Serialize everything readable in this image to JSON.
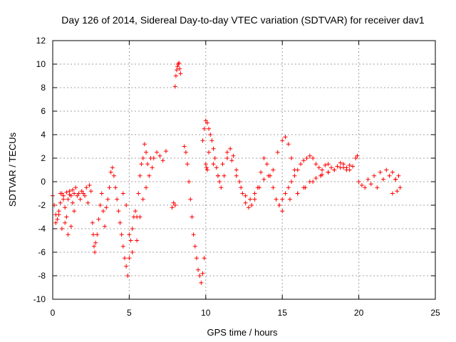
{
  "chart_data": {
    "type": "scatter",
    "title": "Day 126 of 2014, Sidereal Day-to-day VTEC variation (SDTVAR) for receiver dav1",
    "xlabel": "GPS time / hours",
    "ylabel": "SDTVAR / TECUs",
    "xlim": [
      0,
      25
    ],
    "ylim": [
      -10,
      12
    ],
    "xticks": [
      0,
      5,
      10,
      15,
      20,
      25
    ],
    "yticks": [
      -10,
      -8,
      -6,
      -4,
      -2,
      0,
      2,
      4,
      6,
      8,
      10,
      12
    ],
    "grid": true,
    "marker": "+",
    "color": "#ff0000",
    "series": [
      {
        "name": "SDTVAR",
        "x": [
          0.0,
          0.1,
          0.2,
          0.3,
          0.4,
          0.5,
          0.6,
          0.7,
          0.8,
          0.9,
          1.0,
          1.1,
          1.2,
          1.3,
          1.4,
          1.5,
          1.6,
          1.7,
          1.8,
          1.9,
          2.0,
          2.1,
          2.2,
          2.3,
          2.4,
          2.5,
          0.2,
          0.4,
          0.6,
          0.8,
          1.0,
          1.2,
          1.4,
          0.5,
          0.7,
          0.9,
          1.1,
          1.3,
          2.6,
          2.65,
          2.7,
          2.75,
          2.8,
          2.9,
          3.0,
          3.1,
          3.2,
          3.3,
          3.4,
          3.5,
          3.6,
          3.7,
          3.8,
          3.9,
          4.0,
          4.1,
          4.2,
          4.3,
          4.4,
          4.5,
          4.6,
          4.7,
          4.8,
          4.9,
          5.0,
          5.1,
          5.2,
          5.3,
          5.4,
          4.6,
          4.8,
          5.0,
          5.2,
          5.5,
          5.6,
          5.7,
          5.8,
          5.9,
          6.0,
          6.1,
          6.2,
          6.3,
          6.4,
          6.5,
          6.6,
          6.8,
          7.0,
          7.2,
          7.4,
          5.5,
          5.7,
          5.9,
          6.1,
          8.0,
          8.05,
          8.1,
          8.15,
          8.2,
          8.25,
          8.3,
          8.35,
          7.8,
          7.9,
          8.0,
          8.6,
          8.7,
          8.8,
          8.9,
          9.0,
          9.1,
          9.2,
          9.3,
          9.4,
          9.5,
          9.6,
          9.7,
          9.8,
          9.9,
          10.0,
          10.05,
          10.1,
          9.8,
          9.9,
          10.0,
          10.1,
          10.2,
          10.3,
          10.4,
          10.5,
          10.6,
          10.7,
          10.8,
          10.9,
          11.0,
          11.2,
          11.4,
          11.6,
          11.8,
          12.0,
          12.2,
          12.4,
          12.6,
          12.8,
          13.0,
          13.2,
          13.4,
          13.6,
          13.8,
          14.0,
          14.2,
          14.4,
          14.6,
          14.8,
          10.2,
          10.5,
          10.8,
          11.1,
          11.4,
          11.7,
          12.0,
          12.3,
          12.6,
          12.9,
          13.2,
          13.5,
          13.8,
          14.1,
          14.4,
          14.7,
          15.0,
          15.2,
          15.4,
          15.6,
          15.8,
          14.8,
          15.0,
          15.2,
          15.4,
          15.6,
          15.8,
          16.0,
          16.2,
          16.4,
          16.6,
          16.8,
          17.0,
          17.2,
          17.4,
          17.6,
          17.8,
          18.0,
          18.2,
          18.4,
          18.6,
          18.8,
          19.0,
          19.2,
          19.4,
          15.0,
          15.5,
          16.0,
          16.5,
          17.0,
          17.5,
          18.0,
          16.0,
          16.4,
          16.8,
          17.2,
          17.6,
          18.0,
          18.4,
          18.8,
          19.0,
          19.2,
          19.4,
          19.6,
          19.8,
          19.9,
          20.0,
          20.2,
          20.4,
          20.6,
          20.8,
          21.0,
          21.2,
          21.4,
          21.6,
          21.8,
          22.0,
          22.2,
          22.4,
          22.6,
          22.7,
          22.2,
          22.4,
          22.5
        ],
        "y": [
          -1.2,
          -2.0,
          -2.8,
          -3.2,
          -2.5,
          -1.8,
          -1.0,
          -1.5,
          -2.2,
          -3.0,
          -1.5,
          -0.8,
          -1.2,
          -1.8,
          -1.0,
          -0.5,
          -1.2,
          -1.0,
          -1.5,
          -0.8,
          -1.0,
          -1.2,
          -0.5,
          -1.8,
          -0.3,
          -0.8,
          -3.5,
          -2.8,
          -4.0,
          -3.5,
          -4.5,
          -3.8,
          -2.5,
          -1.0,
          -1.2,
          -0.9,
          -1.1,
          -0.7,
          -3.5,
          -4.5,
          -5.5,
          -6.0,
          -5.2,
          -4.5,
          -3.2,
          -2.0,
          -1.0,
          -2.5,
          -3.8,
          -2.2,
          -1.5,
          -0.5,
          0.8,
          1.2,
          0.5,
          -0.5,
          -1.5,
          -2.5,
          -3.5,
          -4.5,
          -5.5,
          -6.5,
          -7.2,
          -8.0,
          -6.5,
          -5.0,
          -4.0,
          -3.0,
          -2.5,
          -1.0,
          -2.0,
          -4.5,
          -6.0,
          -3.0,
          -1.0,
          0.5,
          1.5,
          2.0,
          3.2,
          2.5,
          1.5,
          0.5,
          2.0,
          1.2,
          2.0,
          2.5,
          2.2,
          1.8,
          2.6,
          -5.0,
          -3.0,
          -1.5,
          -0.5,
          8.1,
          9.0,
          9.5,
          9.8,
          10.0,
          10.1,
          9.6,
          9.2,
          -2.2,
          -1.8,
          -2.0,
          3.0,
          2.5,
          1.5,
          0.0,
          -1.5,
          -3.0,
          -4.5,
          -5.5,
          -6.5,
          -7.5,
          -8.0,
          -8.6,
          -7.8,
          -6.5,
          1.5,
          1.2,
          1.0,
          3.5,
          4.5,
          5.2,
          5.0,
          4.5,
          4.0,
          3.5,
          2.8,
          2.0,
          1.2,
          0.5,
          0.0,
          -0.5,
          0.5,
          2.0,
          2.8,
          2.2,
          1.0,
          0.0,
          -1.0,
          -1.8,
          -2.2,
          -2.0,
          -1.5,
          -0.5,
          0.8,
          2.0,
          1.5,
          0.5,
          -0.5,
          -1.5,
          -2.0,
          2.5,
          1.5,
          0.5,
          1.5,
          2.5,
          1.8,
          0.5,
          -0.5,
          -1.2,
          -1.5,
          -1.0,
          -0.5,
          0.2,
          0.5,
          1.0,
          2.5,
          3.5,
          3.8,
          3.2,
          2.0,
          1.0,
          -2.0,
          -1.5,
          -1.0,
          -0.5,
          0.0,
          0.5,
          1.0,
          1.5,
          1.8,
          2.0,
          2.2,
          2.0,
          1.5,
          1.2,
          1.0,
          1.4,
          1.5,
          1.2,
          1.0,
          1.3,
          1.6,
          1.2,
          1.0,
          1.4,
          -2.5,
          -1.5,
          -1.0,
          -0.5,
          0.0,
          0.5,
          0.8,
          -1.0,
          -0.5,
          0.0,
          0.3,
          0.6,
          0.8,
          1.0,
          1.2,
          1.5,
          1.2,
          1.0,
          1.3,
          2.0,
          2.2,
          0.0,
          -0.3,
          -0.5,
          0.2,
          -0.2,
          0.5,
          -0.5,
          0.8,
          0.2,
          1.0,
          0.5,
          0.8,
          0.2,
          0.5,
          -0.5,
          -1.0,
          0.2,
          -0.8
        ]
      }
    ]
  }
}
